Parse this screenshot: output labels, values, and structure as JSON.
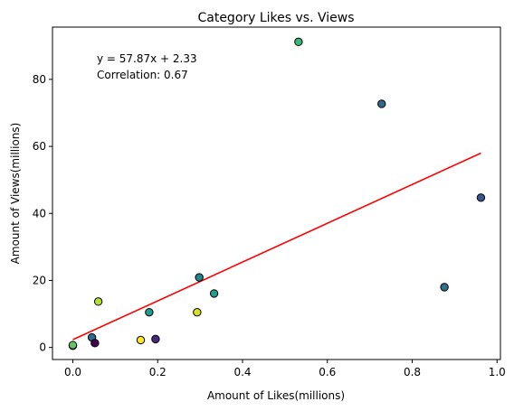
{
  "chart_data": {
    "type": "scatter",
    "title": "Category Likes vs. Views",
    "xlabel": "Amount of Likes(millions)",
    "ylabel": "Amount of Views(millions)",
    "xlim": [
      -0.048,
      1.008
    ],
    "ylim": [
      -3.6,
      95.6
    ],
    "x_ticks": [
      0.0,
      0.2,
      0.4,
      0.6,
      0.8,
      1.0
    ],
    "x_tick_labels": [
      "0.0",
      "0.2",
      "0.4",
      "0.6",
      "0.8",
      "1.0"
    ],
    "y_ticks": [
      0,
      20,
      40,
      60,
      80
    ],
    "y_tick_labels": [
      "0",
      "20",
      "40",
      "60",
      "80"
    ],
    "grid": false,
    "legend": "none",
    "points": [
      {
        "x": 0.0,
        "y": 0.5,
        "color": "#7ad151"
      },
      {
        "x": 0.0,
        "y": 0.7,
        "color": "#5ec962"
      },
      {
        "x": 0.045,
        "y": 3.0,
        "color": "#31688e"
      },
      {
        "x": 0.052,
        "y": 1.3,
        "color": "#440154"
      },
      {
        "x": 0.06,
        "y": 13.7,
        "color": "#b5de2b"
      },
      {
        "x": 0.16,
        "y": 2.2,
        "color": "#fde725"
      },
      {
        "x": 0.18,
        "y": 10.5,
        "color": "#1f9e89"
      },
      {
        "x": 0.195,
        "y": 2.5,
        "color": "#482878"
      },
      {
        "x": 0.293,
        "y": 10.5,
        "color": "#d8e219"
      },
      {
        "x": 0.298,
        "y": 20.9,
        "color": "#26828e"
      },
      {
        "x": 0.333,
        "y": 16.1,
        "color": "#1f9e89"
      },
      {
        "x": 0.532,
        "y": 91.2,
        "color": "#35b779"
      },
      {
        "x": 0.728,
        "y": 72.7,
        "color": "#31688e"
      },
      {
        "x": 0.876,
        "y": 18.0,
        "color": "#2c728e"
      },
      {
        "x": 0.962,
        "y": 44.7,
        "color": "#3b528b"
      }
    ],
    "regression": {
      "slope": 57.87,
      "intercept": 2.33,
      "x_range": [
        0.0,
        0.962
      ],
      "color": "#ff0000"
    },
    "annotations": {
      "equation": "y = 57.87x + 2.33",
      "correlation": "Correlation: 0.67"
    }
  }
}
